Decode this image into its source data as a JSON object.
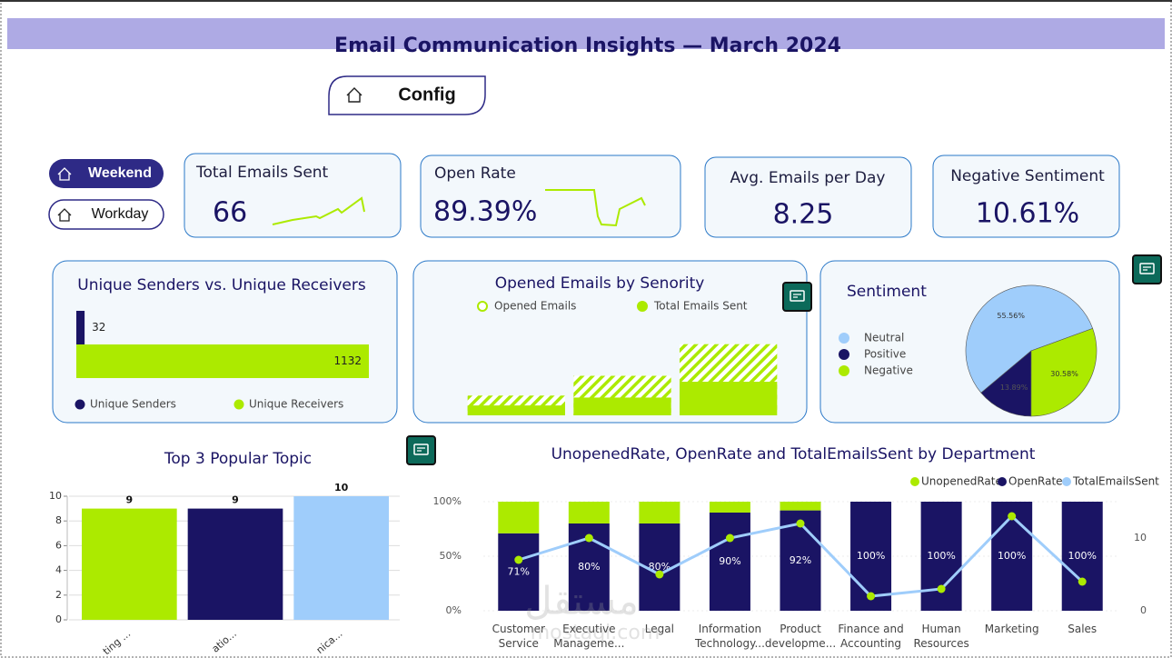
{
  "header": {
    "title": "Email Communication Insights — March 2024"
  },
  "buttons": {
    "config": "Config",
    "weekend": "Weekend",
    "workday": "Workday"
  },
  "kpis": [
    {
      "label": "Total Emails Sent",
      "value": "66"
    },
    {
      "label": "Open Rate",
      "value": "89.39%"
    },
    {
      "label": "Avg. Emails per Day",
      "value": "8.25"
    },
    {
      "label": "Negative Sentiment",
      "value": "10.61%"
    }
  ],
  "watermark": {
    "arabic": "مستقل",
    "latin": "mostaql.com"
  },
  "chart_data": [
    {
      "type": "hbar",
      "title": "Unique Senders vs. Unique Receivers",
      "series": [
        {
          "name": "Unique Senders",
          "color": "#1a1464",
          "values": [
            32
          ]
        },
        {
          "name": "Unique Receivers",
          "color": "#acea00",
          "values": [
            1132
          ]
        }
      ]
    },
    {
      "type": "bar",
      "title": "Opened Emails by Senority",
      "categories": [
        null,
        null,
        null
      ],
      "series": [
        {
          "name": "Opened Emails",
          "color": "#acea00",
          "pattern": "hatch",
          "values": [
            10,
            20,
            36
          ]
        },
        {
          "name": "Total Emails Sent",
          "color": "#acea00",
          "values": [
            5,
            9,
            17
          ]
        }
      ],
      "ylim": [
        0,
        40
      ]
    },
    {
      "type": "pie",
      "title": "Sentiment",
      "categories": [
        "Neutral",
        "Positive",
        "Negative"
      ],
      "values": [
        55.56,
        13.89,
        30.58
      ],
      "value_labels": [
        "55.56%",
        "13.89%",
        "30.58%"
      ],
      "colors": [
        "#9fcdfb",
        "#1a1464",
        "#acea00"
      ]
    },
    {
      "type": "bar",
      "title": "Top 3 Popular Topic",
      "categories": [
        "ting ...",
        "atio...",
        "nica..."
      ],
      "values": [
        9,
        9,
        10
      ],
      "colors": [
        "#acea00",
        "#1a1464",
        "#9fcdfb"
      ],
      "ylim": [
        0,
        10
      ],
      "yticks": [
        0,
        2,
        4,
        6,
        8,
        10
      ],
      "grid": true
    },
    {
      "type": "combo",
      "title": "UnopenedRate, OpenRate and TotalEmailsSent by Department",
      "categories": [
        "Customer Service",
        "Executive Manageme...",
        "Legal",
        "Information Technology...",
        "Product developme...",
        "Finance and Accounting",
        "Human Resources",
        "Marketing",
        "Sales"
      ],
      "stacked": true,
      "legend": "top-right",
      "series": [
        {
          "name": "UnopenedRate",
          "color": "#acea00",
          "values": [
            29,
            20,
            20,
            10,
            8,
            0,
            0,
            0,
            0
          ]
        },
        {
          "name": "OpenRate",
          "color": "#1a1464",
          "values": [
            71,
            80,
            80,
            90,
            92,
            100,
            100,
            100,
            100
          ],
          "value_labels": [
            "71%",
            "80%",
            "80%",
            "90%",
            "92%",
            "100%",
            "100%",
            "100%",
            "100%"
          ]
        },
        {
          "name": "TotalEmailsSent",
          "color": "#9fcdfb",
          "axis": "y2",
          "marker_color": "#acea00",
          "values": [
            7,
            10,
            5,
            10,
            12,
            2,
            3,
            13,
            4
          ]
        }
      ],
      "ylim": [
        0,
        100
      ],
      "yticks": [
        {
          "value": 0,
          "label": "0%"
        },
        {
          "value": 50,
          "label": "50%"
        },
        {
          "value": 100,
          "label": "100%"
        }
      ],
      "y2lim": [
        0,
        15
      ],
      "y2ticks": [
        0,
        10
      ]
    }
  ]
}
